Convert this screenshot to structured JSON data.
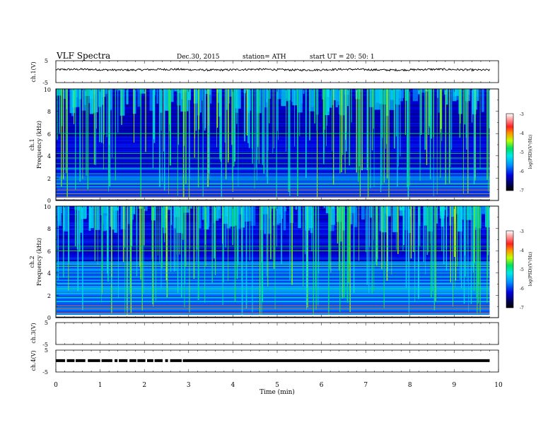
{
  "header": {
    "title": "VLF  Spectra",
    "date": "Dec.30, 2015",
    "station": "station= ATH",
    "start": "start  UT  =    20: 50: 1"
  },
  "chart_data": [
    {
      "type": "line",
      "name": "ch1-waveform",
      "ylabel": "ch.1(V)",
      "ylim": [
        -5,
        5
      ],
      "yticks": [
        "5",
        "-5"
      ],
      "xlim": [
        0,
        10
      ],
      "trace_level_v": 0.9
    },
    {
      "type": "heatmap",
      "name": "ch1-spectrogram",
      "ylabel": "ch.1\nFrequency  (kHz)",
      "ylabel_lines": [
        "ch.1",
        "Frequency  (kHz)"
      ],
      "ylim": [
        0,
        10
      ],
      "yticks": [
        "0",
        "2",
        "4",
        "6",
        "8",
        "10"
      ],
      "xlim": [
        0,
        9.8
      ],
      "colorbar": {
        "label": "log(PSD)(V²/Hz)",
        "range": [
          -7,
          -3
        ],
        "ticks": [
          "-3",
          "-4",
          "-5",
          "-6",
          "-7"
        ]
      }
    },
    {
      "type": "heatmap",
      "name": "ch2-spectrogram",
      "ylabel": "ch.2\nFrequency  (kHz)",
      "ylabel_lines": [
        "ch.2",
        "Frequency  (kHz)"
      ],
      "ylim": [
        0,
        10
      ],
      "yticks": [
        "0",
        "2",
        "4",
        "6",
        "8",
        "10"
      ],
      "xlim": [
        0,
        9.8
      ],
      "colorbar": {
        "label": "log(PSD)(V²/Hz)",
        "range": [
          -7,
          -3
        ],
        "ticks": [
          "-3",
          "-4",
          "-5",
          "-6",
          "-7"
        ]
      }
    },
    {
      "type": "line",
      "name": "ch3-waveform",
      "ylabel": "ch.3(V)",
      "ylim": [
        -5,
        5
      ],
      "yticks": [
        "5",
        "-5"
      ],
      "xlim": [
        0,
        10
      ]
    },
    {
      "type": "line",
      "name": "ch4-waveform",
      "ylabel": "ch.4(V)",
      "ylim": [
        -5,
        5
      ],
      "yticks": [
        "5",
        "-5"
      ],
      "xlim": [
        0,
        10
      ],
      "trace_level_v": 0.2
    }
  ],
  "xaxis": {
    "label": "Time  (min)",
    "ticks": [
      "0",
      "1",
      "2",
      "3",
      "4",
      "5",
      "6",
      "7",
      "8",
      "9",
      "10"
    ],
    "range": [
      0,
      10
    ]
  }
}
